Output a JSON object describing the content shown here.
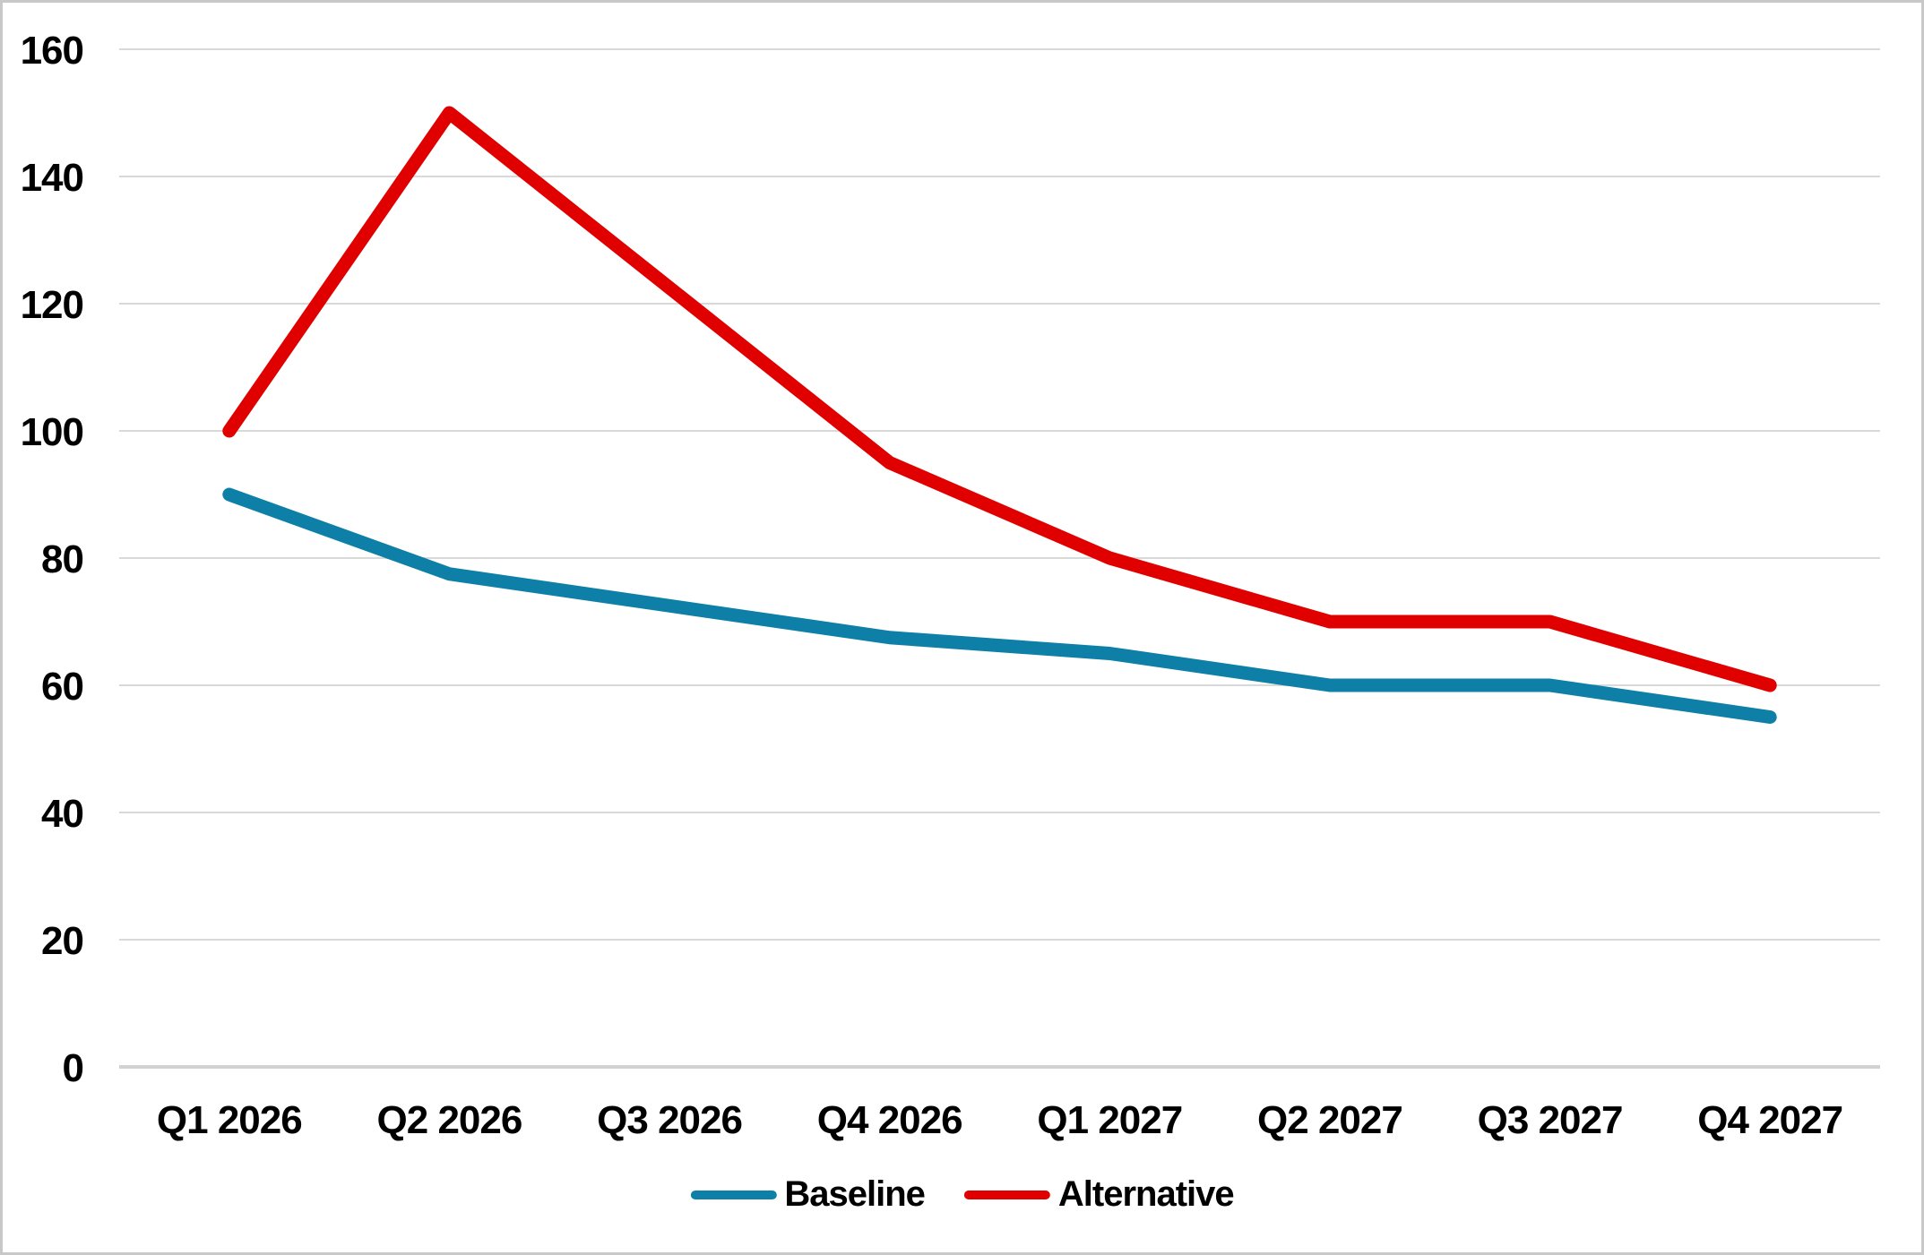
{
  "chart_data": {
    "type": "line",
    "title": "",
    "xlabel": "",
    "ylabel": "",
    "categories": [
      "Q1 2026",
      "Q2 2026",
      "Q3 2026",
      "Q4 2026",
      "Q1 2027",
      "Q2 2027",
      "Q3 2027",
      "Q4 2027"
    ],
    "series": [
      {
        "name": "Baseline",
        "color": "#0e80a8",
        "values": [
          90,
          77.5,
          72.5,
          67.5,
          65,
          60,
          60,
          55
        ]
      },
      {
        "name": "Alternative",
        "color": "#e00000",
        "values": [
          100,
          150,
          122.5,
          95,
          80,
          70,
          70,
          60
        ]
      }
    ],
    "ylim": [
      0,
      160
    ],
    "y_ticks": [
      0,
      20,
      40,
      60,
      80,
      100,
      120,
      140,
      160
    ],
    "grid": true,
    "legend_position": "bottom-center"
  }
}
